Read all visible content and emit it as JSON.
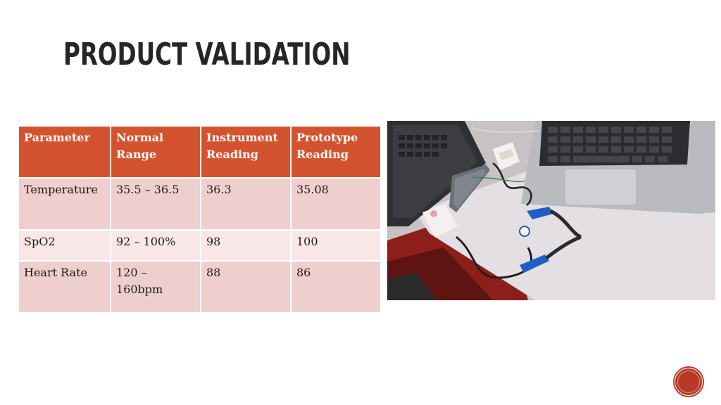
{
  "slide": {
    "title": "Product Validation"
  },
  "table": {
    "headers": [
      "Parameter",
      "Normal Range",
      "Instrument Reading",
      "Prototype Reading"
    ],
    "rows": [
      [
        "Temperature",
        "35.5 – 36.5",
        "36.3",
        "35.08"
      ],
      [
        "SpO2",
        "92 – 100%",
        "98",
        "100"
      ],
      [
        "Heart Rate",
        "120 – 160bpm",
        "88",
        "86"
      ]
    ]
  },
  "colors": {
    "header_fill": "#d4532f",
    "row_fill_dark": "#efcfcd",
    "row_fill_light": "#f8e7e6",
    "accent_circle": "#b83a26"
  }
}
